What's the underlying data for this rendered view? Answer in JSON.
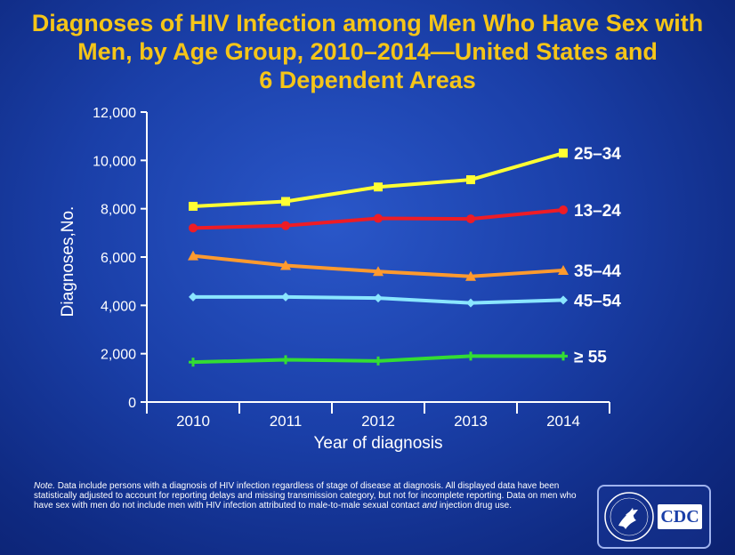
{
  "title": {
    "line1": "Diagnoses of HIV Infection among Men Who Have Sex with",
    "line2": "Men, by Age Group, 2010–2014—United States and",
    "line3": "6 Dependent Areas"
  },
  "chart_data": {
    "type": "line",
    "title": "Diagnoses of HIV Infection among Men Who Have Sex with Men, by Age Group, 2010–2014—United States and 6 Dependent Areas",
    "xlabel": "Year of diagnosis",
    "ylabel": "Diagnoses,No.",
    "categories": [
      "2010",
      "2011",
      "2012",
      "2013",
      "2014"
    ],
    "ylim": [
      0,
      12000
    ],
    "yticks": [
      0,
      2000,
      4000,
      6000,
      8000,
      10000,
      12000
    ],
    "ytick_labels": [
      "0",
      "2,000",
      "4,000",
      "6,000",
      "8,000",
      "10,000",
      "12,000"
    ],
    "grid": false,
    "legend": "end-of-line labels",
    "series": [
      {
        "name": "25–34",
        "color": "#ffff33",
        "marker": "square",
        "values": [
          8100,
          8300,
          8900,
          9200,
          10300
        ]
      },
      {
        "name": "13–24",
        "color": "#ee1c25",
        "marker": "circle",
        "values": [
          7200,
          7300,
          7600,
          7580,
          7950
        ]
      },
      {
        "name": "35–44",
        "color": "#ff9a2e",
        "marker": "triangle",
        "values": [
          6050,
          5650,
          5400,
          5200,
          5450
        ]
      },
      {
        "name": "45–54",
        "color": "#8ae6ff",
        "marker": "diamond",
        "values": [
          4350,
          4350,
          4300,
          4100,
          4220
        ]
      },
      {
        "name": "≥ 55",
        "color": "#33dd33",
        "marker": "plus",
        "values": [
          1650,
          1750,
          1700,
          1900,
          1900
        ]
      }
    ]
  },
  "note": {
    "lead": "Note.",
    "text": "Data include persons with a diagnosis of HIV infection regardless of stage of disease at diagnosis. All displayed data have been statistically adjusted to account for reporting delays and missing transmission category, but not for incomplete reporting. Data on men who have sex with men do not include men with HIV infection attributed to male-to-male sexual contact",
    "and_word": "and",
    "text_end": "injection drug use."
  },
  "logo": {
    "text": "CDC",
    "icons": [
      "hhs-eagle-seal-icon",
      "cdc-logo-icon"
    ]
  }
}
